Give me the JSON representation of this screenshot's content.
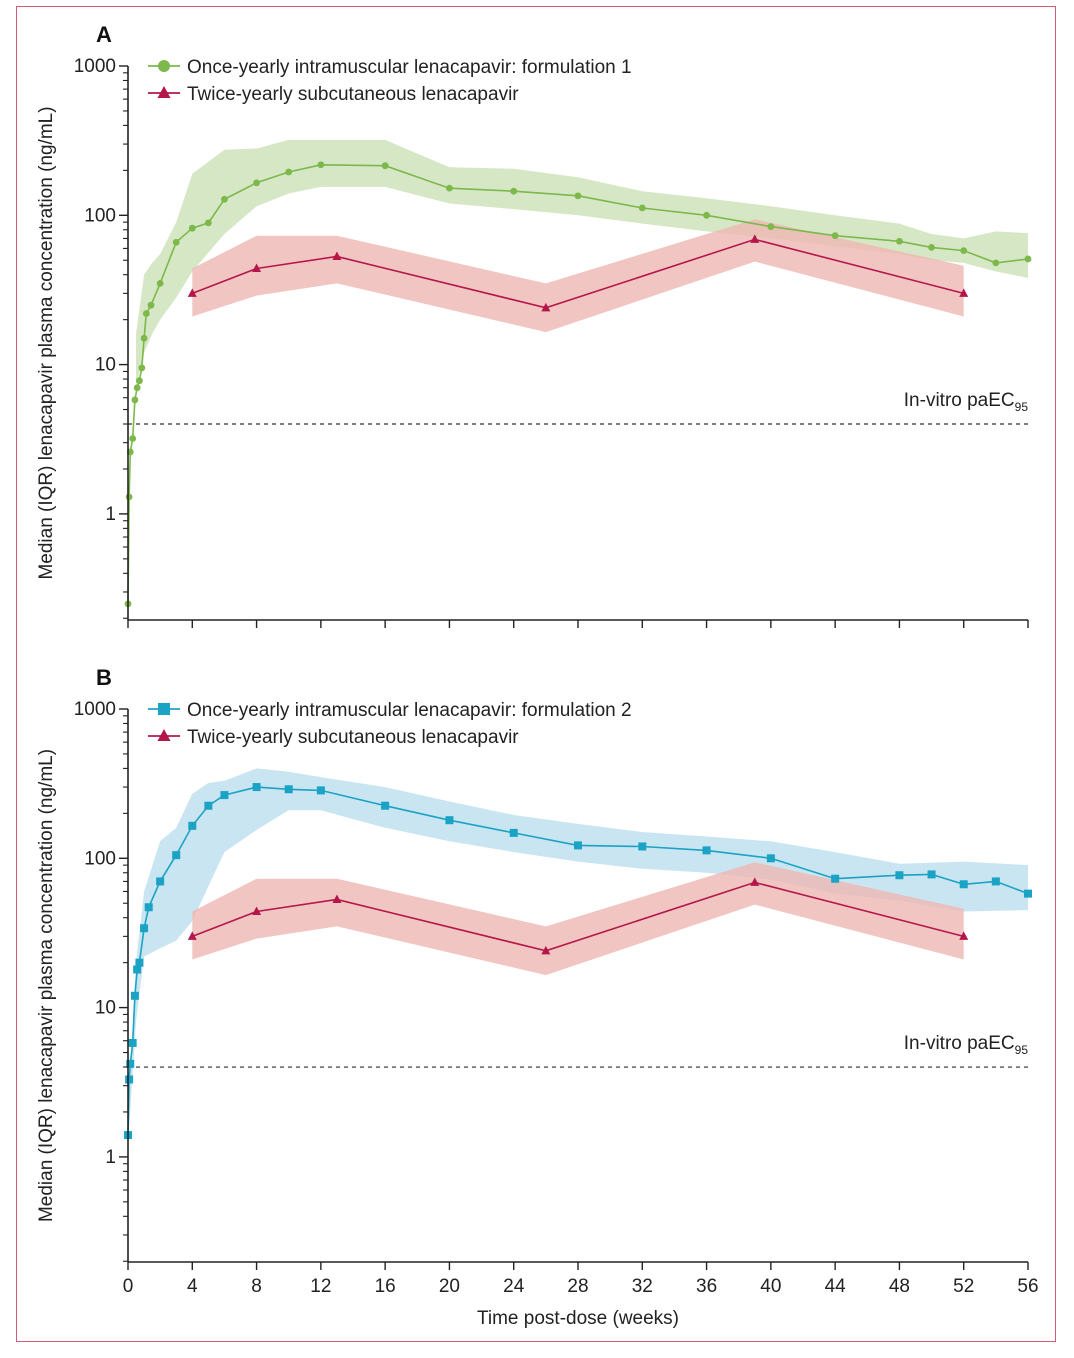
{
  "colors": {
    "green": "#7cb84a",
    "green_band": "#cfe3bc",
    "blue": "#1aa3c4",
    "blue_band": "#bfe1ee",
    "red": "#b5174a",
    "red_band": "#eeb8b3",
    "axis": "#222222",
    "ref_line": "#555555"
  },
  "chart_data": [
    {
      "type": "line",
      "panel_label": "A",
      "xlabel": "",
      "ylabel": "Median (IQR) lenacapavir plasma concentration (ng/mL)",
      "yscale": "log",
      "ylim": [
        0.2,
        1000
      ],
      "xlim": [
        0,
        56
      ],
      "y_ticks": [
        "1000",
        "100",
        "10",
        "1"
      ],
      "x_ticks": [
        0,
        4,
        8,
        12,
        16,
        20,
        24,
        28,
        32,
        36,
        40,
        44,
        48,
        52,
        56
      ],
      "x_tick_labels_shown": false,
      "reference_line": {
        "label": "In-vitro paEC",
        "subscript": "95",
        "value": 4
      },
      "series": [
        {
          "name": "Once-yearly intramuscular lenacapavir: formulation 1",
          "marker": "circle",
          "color": "green",
          "x": [
            0,
            0.07,
            0.14,
            0.29,
            0.43,
            0.57,
            0.71,
            0.86,
            1,
            1.14,
            1.43,
            2,
            3,
            4,
            5,
            6,
            8,
            10,
            12,
            16,
            20,
            24,
            28,
            32,
            36,
            40,
            44,
            48,
            50,
            52,
            54,
            56
          ],
          "y": [
            0.25,
            1.3,
            2.6,
            3.2,
            5.8,
            7,
            7.8,
            9.5,
            15,
            22,
            25,
            35,
            66,
            82,
            89,
            128,
            165,
            195,
            218,
            215,
            152,
            145,
            135,
            112,
            100,
            84,
            73,
            67,
            61,
            58,
            48,
            51
          ],
          "iqr_x": [
            0.5,
            1,
            1.5,
            2,
            3,
            4,
            6,
            8,
            10,
            12,
            16,
            20,
            24,
            28,
            32,
            36,
            40,
            44,
            48,
            50,
            52,
            54,
            56
          ],
          "iqr_low": [
            7,
            12,
            16,
            20,
            28,
            42,
            75,
            115,
            140,
            155,
            155,
            120,
            110,
            100,
            88,
            78,
            70,
            62,
            55,
            50,
            48,
            42,
            38
          ],
          "iqr_high": [
            16,
            40,
            48,
            55,
            90,
            190,
            275,
            280,
            320,
            320,
            320,
            210,
            205,
            180,
            145,
            130,
            115,
            100,
            88,
            75,
            70,
            78,
            76
          ]
        },
        {
          "name": "Twice-yearly subcutaneous lenacapavir",
          "marker": "triangle",
          "color": "red",
          "x": [
            4,
            8,
            13,
            26,
            39,
            52
          ],
          "y": [
            30,
            44,
            53,
            24,
            69,
            30
          ],
          "iqr_low": [
            21,
            29,
            35,
            16.5,
            49,
            21
          ],
          "iqr_high": [
            44,
            73,
            73,
            35,
            94,
            46
          ]
        }
      ]
    },
    {
      "type": "line",
      "panel_label": "B",
      "xlabel": "Time post-dose (weeks)",
      "ylabel": "Median (IQR) lenacapavir plasma concentration (ng/mL)",
      "yscale": "log",
      "ylim": [
        0.2,
        1000
      ],
      "xlim": [
        0,
        56
      ],
      "y_ticks": [
        "1000",
        "100",
        "10",
        "1"
      ],
      "x_ticks": [
        0,
        4,
        8,
        12,
        16,
        20,
        24,
        28,
        32,
        36,
        40,
        44,
        48,
        52,
        56
      ],
      "x_tick_labels_shown": true,
      "reference_line": {
        "label": "In-vitro paEC",
        "subscript": "95",
        "value": 4
      },
      "series": [
        {
          "name": "Once-yearly intramuscular lenacapavir: formulation 2",
          "marker": "square",
          "color": "blue",
          "x": [
            0,
            0.07,
            0.14,
            0.29,
            0.43,
            0.57,
            0.71,
            1,
            1.29,
            2,
            3,
            4,
            5,
            6,
            8,
            10,
            12,
            16,
            20,
            24,
            28,
            32,
            36,
            40,
            44,
            48,
            50,
            52,
            54,
            56
          ],
          "y": [
            1.4,
            3.3,
            4.2,
            5.8,
            12,
            18,
            20,
            34,
            47,
            70,
            105,
            165,
            225,
            265,
            300,
            290,
            285,
            225,
            180,
            148,
            122,
            120,
            113,
            100,
            73,
            77,
            78,
            67,
            70,
            58
          ],
          "iqr_x": [
            0,
            0.5,
            1,
            2,
            3,
            4,
            5,
            6,
            8,
            10,
            12,
            16,
            20,
            24,
            28,
            32,
            36,
            40,
            44,
            48,
            52,
            56
          ],
          "iqr_low": [
            1.2,
            8,
            22,
            25,
            28,
            38,
            65,
            110,
            155,
            210,
            210,
            160,
            130,
            110,
            95,
            85,
            80,
            72,
            58,
            52,
            44,
            45
          ],
          "iqr_high": [
            2,
            20,
            60,
            130,
            160,
            270,
            320,
            330,
            400,
            380,
            350,
            300,
            240,
            195,
            170,
            150,
            140,
            130,
            110,
            92,
            95,
            90
          ]
        },
        {
          "name": "Twice-yearly subcutaneous lenacapavir",
          "marker": "triangle",
          "color": "red",
          "x": [
            4,
            8,
            13,
            26,
            39,
            52
          ],
          "y": [
            30,
            44,
            53,
            24,
            69,
            30
          ],
          "iqr_low": [
            21,
            29,
            35,
            16.5,
            49,
            21
          ],
          "iqr_high": [
            44,
            73,
            73,
            35,
            94,
            46
          ]
        }
      ]
    }
  ]
}
